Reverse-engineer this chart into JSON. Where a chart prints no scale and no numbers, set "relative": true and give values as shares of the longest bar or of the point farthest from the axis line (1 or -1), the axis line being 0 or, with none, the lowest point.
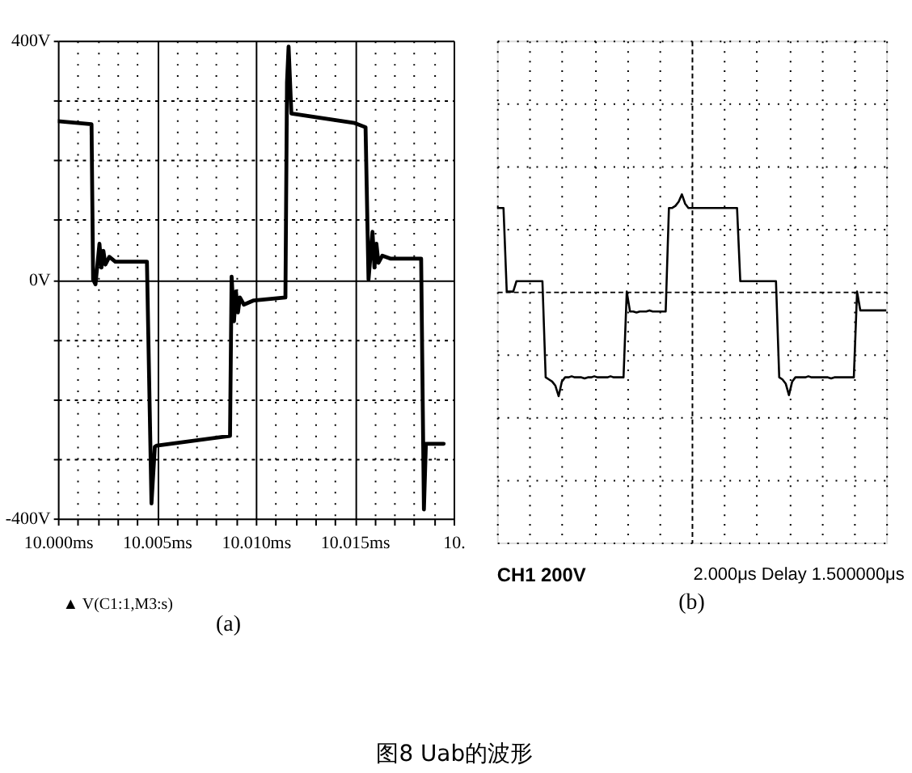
{
  "chart_data": [
    {
      "type": "line",
      "title": "(a)",
      "annotations": [
        "▲ V(C1:1,M3:s)"
      ],
      "x": [
        10.0,
        10.0017,
        10.00178,
        10.0019,
        10.0021,
        10.0022,
        10.0023,
        10.0024,
        10.0026,
        10.0029,
        10.0045,
        10.00473,
        10.0049,
        10.005,
        10.0087,
        10.00878,
        10.0089,
        10.009,
        10.0091,
        10.0092,
        10.0094,
        10.0099,
        10.0115,
        10.01158,
        10.01166,
        10.0118,
        10.015,
        10.01555,
        10.0157,
        10.0159,
        10.016,
        10.0161,
        10.0162,
        10.0164,
        10.0168,
        10.01836,
        10.0185,
        10.0186,
        10.0195
      ],
      "series": [
        {
          "color": "#000000",
          "values": [
            265,
            260,
            0,
            -8,
            60,
            20,
            48,
            25,
            38,
            30,
            30,
            -375,
            -280,
            -278,
            -262,
            5,
            -70,
            -20,
            -55,
            -30,
            -42,
            -35,
            -30,
            330,
            390,
            278,
            262,
            255,
            0,
            80,
            20,
            60,
            28,
            40,
            35,
            35,
            -385,
            -275,
            -275
          ]
        }
      ],
      "xlim": [
        10.0,
        10.02
      ],
      "xticks": [
        {
          "value": 10.0,
          "label": "10.000ms"
        },
        {
          "value": 10.001,
          "label": null
        },
        {
          "value": 10.002,
          "label": null
        },
        {
          "value": 10.003,
          "label": null
        },
        {
          "value": 10.004,
          "label": null
        },
        {
          "value": 10.005,
          "label": "10.005ms"
        },
        {
          "value": 10.006,
          "label": null
        },
        {
          "value": 10.007,
          "label": null
        },
        {
          "value": 10.008,
          "label": null
        },
        {
          "value": 10.009,
          "label": null
        },
        {
          "value": 10.01,
          "label": "10.010ms"
        },
        {
          "value": 10.011,
          "label": null
        },
        {
          "value": 10.012,
          "label": null
        },
        {
          "value": 10.013,
          "label": null
        },
        {
          "value": 10.014,
          "label": null
        },
        {
          "value": 10.015,
          "label": "10.015ms"
        },
        {
          "value": 10.016,
          "label": null
        },
        {
          "value": 10.017,
          "label": null
        },
        {
          "value": 10.018,
          "label": null
        },
        {
          "value": 10.019,
          "label": null
        },
        {
          "value": 10.02,
          "label": "10."
        }
      ],
      "ylim": [
        -400,
        400
      ],
      "yticks": [
        {
          "value": -400,
          "label": "-400V"
        },
        {
          "value": -300,
          "label": null
        },
        {
          "value": -200,
          "label": null
        },
        {
          "value": -100,
          "label": null
        },
        {
          "value": 0,
          "label": "0V"
        },
        {
          "value": 100,
          "label": null
        },
        {
          "value": 200,
          "label": null
        },
        {
          "value": 300,
          "label": null
        },
        {
          "value": 400,
          "label": "400V"
        }
      ],
      "grid": true
    },
    {
      "type": "line",
      "title": "(b)",
      "annotations": [
        "CH1  200V",
        "2.000μs Delay 1.500000μs",
        "图8 Uab的波形"
      ],
      "categories": [
        null,
        null,
        null,
        null,
        null,
        null,
        null,
        null,
        null,
        null,
        null,
        null,
        null,
        null,
        null,
        null,
        null,
        null,
        null,
        null,
        null,
        null,
        null,
        null,
        null,
        null,
        null,
        null,
        null,
        null,
        null,
        null,
        null,
        null,
        null,
        null,
        null,
        null,
        null,
        null,
        null,
        null,
        null,
        null,
        null,
        null,
        null,
        null,
        null,
        null,
        null,
        null,
        null,
        null,
        null,
        null,
        null,
        null,
        null,
        null,
        null,
        null,
        null,
        null,
        null,
        null,
        null,
        null,
        null,
        null,
        null,
        null,
        null,
        null,
        null,
        null,
        null,
        null,
        null,
        null,
        null,
        null,
        null,
        null,
        null,
        null,
        null,
        null,
        null,
        null,
        null,
        null,
        null,
        null,
        null,
        null,
        null,
        null,
        null,
        null,
        null,
        null,
        null,
        null,
        null,
        null,
        null,
        null,
        null,
        null,
        null,
        null,
        null,
        null,
        null,
        null,
        null,
        null,
        null,
        null,
        null
      ],
      "series": [
        {
          "color": "#000000",
          "values": [
            0.8,
            0.8,
            0.8,
            0.0,
            0.0,
            0.0,
            0.1,
            0.1,
            0.1,
            0.1,
            0.1,
            0.1,
            0.1,
            0.1,
            0.1,
            -0.82,
            -0.84,
            -0.86,
            -0.9,
            -1.0,
            -0.86,
            -0.82,
            -0.82,
            -0.81,
            -0.82,
            -0.82,
            -0.82,
            -0.83,
            -0.82,
            -0.82,
            -0.81,
            -0.82,
            -0.82,
            -0.82,
            -0.82,
            -0.81,
            -0.82,
            -0.82,
            -0.82,
            -0.82,
            0.0,
            -0.19,
            -0.19,
            -0.2,
            -0.19,
            -0.19,
            -0.19,
            -0.18,
            -0.19,
            -0.19,
            -0.19,
            -0.19,
            -0.19,
            0.8,
            0.8,
            0.82,
            0.86,
            0.93,
            0.84,
            0.8,
            0.8,
            0.8,
            0.8,
            0.8,
            0.8,
            0.8,
            0.8,
            0.8,
            0.8,
            0.8,
            0.8,
            0.8,
            0.8,
            0.8,
            0.8,
            0.1,
            0.1,
            0.1,
            0.1,
            0.1,
            0.1,
            0.1,
            0.1,
            0.1,
            0.1,
            0.1,
            0.1,
            -0.82,
            -0.84,
            -0.88,
            -0.99,
            -0.86,
            -0.82,
            -0.82,
            -0.82,
            -0.82,
            -0.81,
            -0.82,
            -0.82,
            -0.82,
            -0.82,
            -0.82,
            -0.82,
            -0.83,
            -0.82,
            -0.82,
            -0.82,
            -0.82,
            -0.82,
            -0.82,
            -0.82,
            0.0,
            -0.18,
            -0.18,
            -0.18,
            -0.18,
            -0.18,
            -0.18,
            -0.18,
            -0.18,
            -0.18
          ]
        }
      ],
      "relative": true,
      "grid": true,
      "tick_labels": false
    }
  ]
}
